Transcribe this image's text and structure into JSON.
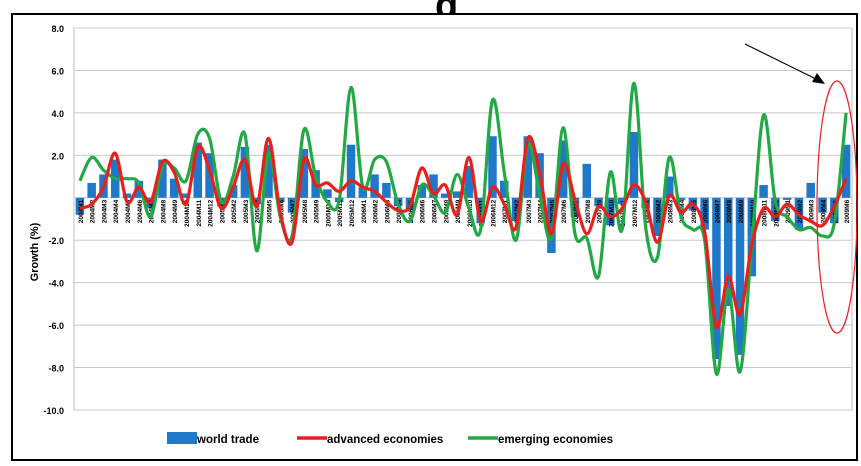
{
  "header_fragment": "g",
  "chart_data": {
    "type": "bar",
    "title": "",
    "xlabel": "",
    "ylabel": "Growth (%)",
    "ylim": [
      -10.0,
      8.0
    ],
    "yticks": [
      8.0,
      6.0,
      4.0,
      2.0,
      0.0,
      -2.0,
      -4.0,
      -6.0,
      -8.0,
      -10.0
    ],
    "ytick_labels": [
      "8.0",
      "6.0",
      "4.0",
      "2.0",
      "",
      "-2.0",
      "-4.0",
      "-6.0",
      "-8.0",
      "-10.0"
    ],
    "grid": true,
    "legend_position": "bottom",
    "categories": [
      "2004M1",
      "2004M2",
      "2004M3",
      "2004M4",
      "2004M5",
      "2004M6",
      "2004M7",
      "2004M8",
      "2004M9",
      "2004M10",
      "2004M11",
      "2004M12",
      "2005M1",
      "2005M2",
      "2005M3",
      "2005M4",
      "2005M5",
      "2005M6",
      "2005M7",
      "2005M8",
      "2005M9",
      "2005M10",
      "2005M11",
      "2005M12",
      "2006M1",
      "2006M2",
      "2006M3",
      "2006M4",
      "2006M5",
      "2006M6",
      "2006M7",
      "2006M8",
      "2006M9",
      "2006M10",
      "2006M11",
      "2006M12",
      "2007M1",
      "2007M2",
      "2007M3",
      "2007M4",
      "2007M5",
      "2007M6",
      "2007M7",
      "2007M8",
      "2007M9",
      "2007M10",
      "2007M11",
      "2007M12",
      "2008M1",
      "2008M2",
      "2008M3",
      "2008M4",
      "2008M5",
      "2008M6",
      "2008M7",
      "2008M8",
      "2008M9",
      "2008M10",
      "2008M11",
      "2008M12",
      "2009M1",
      "2009M2",
      "2009M3",
      "2009M4",
      "2009M5",
      "2009M6"
    ],
    "series": [
      {
        "name": "world trade",
        "type": "bar",
        "color": "#1f78c8",
        "values": [
          -0.8,
          0.7,
          1.1,
          1.8,
          0.2,
          0.8,
          -0.5,
          1.8,
          0.9,
          0.2,
          2.6,
          2.1,
          -0.4,
          0.6,
          2.4,
          -0.3,
          2.5,
          -0.2,
          -0.7,
          2.3,
          1.3,
          0.4,
          -0.2,
          2.5,
          0.5,
          1.1,
          0.7,
          -0.4,
          -0.6,
          0.6,
          1.1,
          0.2,
          0.3,
          1.5,
          -1.2,
          2.9,
          0.8,
          -1.1,
          2.9,
          2.1,
          -2.6,
          2.7,
          -0.9,
          1.6,
          -0.4,
          -1.3,
          -0.3,
          3.1,
          -0.5,
          -1.8,
          1.0,
          -0.1,
          -0.6,
          -1.5,
          -7.6,
          -5.1,
          -7.4,
          -3.7,
          0.6,
          -1.1,
          -0.1,
          -1.5,
          0.7,
          -0.7,
          -1.2,
          2.5
        ]
      },
      {
        "name": "advanced economies",
        "type": "line",
        "color": "#e8201c",
        "values": [
          -0.5,
          -0.3,
          0.5,
          2.1,
          -0.2,
          0.5,
          -0.2,
          1.7,
          1.2,
          -0.3,
          2.4,
          1.3,
          -0.5,
          0.5,
          1.8,
          -0.4,
          2.8,
          -0.7,
          -2.1,
          1.8,
          0.6,
          0.7,
          0.3,
          0.8,
          0.5,
          0.3,
          -0.2,
          -0.6,
          -0.4,
          1.4,
          0.2,
          0.6,
          -0.8,
          1.9,
          -1.1,
          0.5,
          -0.3,
          -1.4,
          2.8,
          1.2,
          -1.7,
          1.6,
          -0.1,
          -1.7,
          -0.4,
          -0.9,
          -0.5,
          0.6,
          -0.2,
          -2.1,
          0.1,
          -0.7,
          -0.3,
          -1.6,
          -6.1,
          -3.7,
          -5.5,
          -2.2,
          -0.5,
          -0.9,
          -0.3,
          -0.8,
          -1.1,
          -1.3,
          -0.4,
          0.9
        ]
      },
      {
        "name": "emerging economies",
        "type": "line",
        "color": "#22a844",
        "values": [
          0.8,
          1.9,
          1.3,
          0.9,
          0.9,
          0.7,
          -0.9,
          1.5,
          1.4,
          0.8,
          3.0,
          2.8,
          -0.2,
          1.0,
          3.0,
          -2.5,
          2.1,
          -0.9,
          -1.8,
          3.2,
          1.0,
          -0.2,
          -0.1,
          5.2,
          0.5,
          1.8,
          1.7,
          -0.3,
          -1.1,
          0.6,
          0.1,
          -0.7,
          1.1,
          -0.5,
          -1.5,
          4.6,
          1.2,
          -2.0,
          2.5,
          0.2,
          -1.9,
          3.3,
          -1.7,
          -1.9,
          -3.7,
          1.2,
          -1.5,
          5.4,
          -1.4,
          -2.8,
          1.9,
          -0.9,
          -1.5,
          -2.0,
          -8.3,
          -4.3,
          -8.2,
          -2.2,
          3.9,
          -0.2,
          -0.9,
          -1.5,
          -1.4,
          -1.8,
          -1.2,
          4.0
        ]
      }
    ]
  },
  "legend": {
    "items": [
      {
        "label": "world trade",
        "color": "#1f78c8",
        "style": "bar"
      },
      {
        "label": "advanced economies",
        "color": "#e8201c",
        "style": "line"
      },
      {
        "label": "emerging economies",
        "color": "#22a844",
        "style": "line"
      }
    ]
  },
  "annotation": {
    "arrow_color": "#000000",
    "ellipse_color": "#e8201c"
  }
}
